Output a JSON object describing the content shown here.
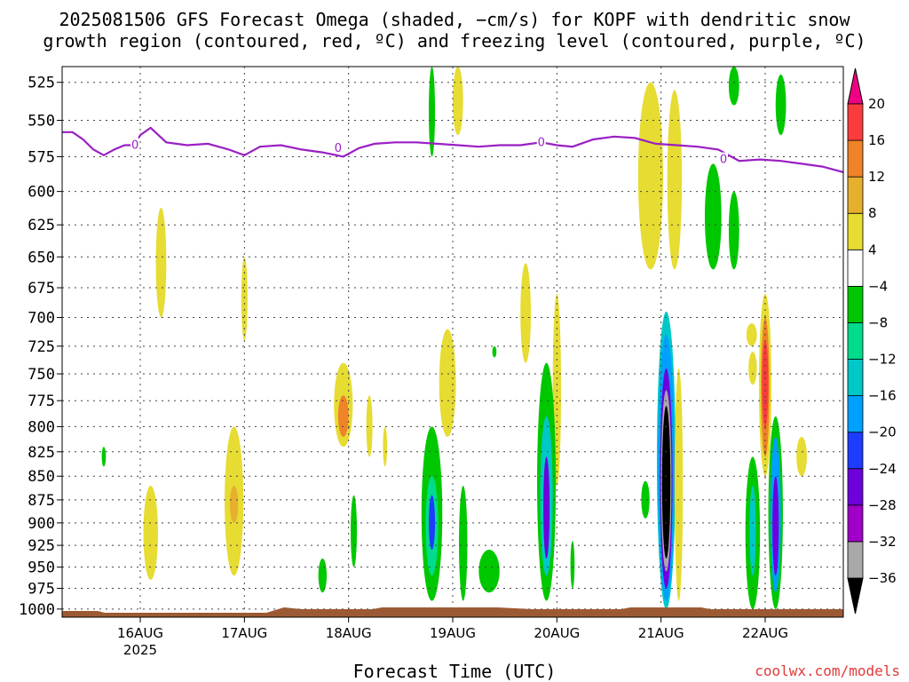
{
  "chart_data": {
    "type": "heatmap",
    "title_line1": "2025081506 GFS Forecast Omega (shaded, −cm/s) for KOPF with dendritic snow",
    "title_line2": "growth region (contoured, red, ºC) and freezing level (contoured, purple, ºC)",
    "xlabel": "Forecast Time (UTC)",
    "credit": "coolwx.com/models",
    "x_axis": {
      "unit": "days since 2025-08-15 06 UTC",
      "range": [
        0,
        7.5
      ],
      "ticks": [
        {
          "x": 0.75,
          "label": "16AUG",
          "sublabel": "2025"
        },
        {
          "x": 1.75,
          "label": "17AUG",
          "sublabel": ""
        },
        {
          "x": 2.75,
          "label": "18AUG",
          "sublabel": ""
        },
        {
          "x": 3.75,
          "label": "19AUG",
          "sublabel": ""
        },
        {
          "x": 4.75,
          "label": "20AUG",
          "sublabel": ""
        },
        {
          "x": 5.75,
          "label": "21AUG",
          "sublabel": ""
        },
        {
          "x": 6.75,
          "label": "22AUG",
          "sublabel": ""
        }
      ]
    },
    "y_axis": {
      "unit": "hPa",
      "reversed": true,
      "range": [
        1010,
        515
      ],
      "ticks": [
        525,
        550,
        575,
        600,
        625,
        650,
        675,
        700,
        725,
        750,
        775,
        800,
        825,
        850,
        875,
        900,
        925,
        950,
        975,
        1000
      ]
    },
    "grid": true,
    "colorbar": {
      "bins": [
        {
          "color": "#000000"
        },
        {
          "color": "#a8a8a8"
        },
        {
          "color": "#a000c8"
        },
        {
          "color": "#6e00dc"
        },
        {
          "color": "#1e3cff"
        },
        {
          "color": "#00a0ff"
        },
        {
          "color": "#00c8c8"
        },
        {
          "color": "#00dc8c"
        },
        {
          "color": "#00c800"
        },
        {
          "color": "#ffffff"
        },
        {
          "color": "#e6dc32"
        },
        {
          "color": "#e6b02e"
        },
        {
          "color": "#f08228"
        },
        {
          "color": "#fa3c3c"
        },
        {
          "color": "#f00082"
        }
      ],
      "labels": [
        "20",
        "16",
        "12",
        "8",
        "4",
        "−4",
        "−8",
        "−12",
        "−16",
        "−20",
        "−24",
        "−28",
        "−32",
        "−36"
      ]
    },
    "freezing_level": {
      "color": "#9a1fc4",
      "contour_label": "0",
      "points": [
        [
          0.0,
          558
        ],
        [
          0.1,
          558
        ],
        [
          0.2,
          563
        ],
        [
          0.3,
          570
        ],
        [
          0.4,
          574
        ],
        [
          0.5,
          570
        ],
        [
          0.6,
          567
        ],
        [
          0.7,
          567
        ],
        [
          0.75,
          560
        ],
        [
          0.85,
          555
        ],
        [
          1.0,
          565
        ],
        [
          1.2,
          567
        ],
        [
          1.4,
          566
        ],
        [
          1.6,
          570
        ],
        [
          1.75,
          574
        ],
        [
          1.9,
          568
        ],
        [
          2.1,
          567
        ],
        [
          2.3,
          570
        ],
        [
          2.5,
          572
        ],
        [
          2.7,
          575
        ],
        [
          2.85,
          569
        ],
        [
          3.0,
          566
        ],
        [
          3.2,
          565
        ],
        [
          3.4,
          565
        ],
        [
          3.6,
          566
        ],
        [
          3.8,
          567
        ],
        [
          4.0,
          568
        ],
        [
          4.2,
          567
        ],
        [
          4.4,
          567
        ],
        [
          4.6,
          565
        ],
        [
          4.75,
          567
        ],
        [
          4.9,
          568
        ],
        [
          5.1,
          563
        ],
        [
          5.3,
          561
        ],
        [
          5.5,
          562
        ],
        [
          5.7,
          566
        ],
        [
          5.9,
          567
        ],
        [
          6.1,
          568
        ],
        [
          6.3,
          570
        ],
        [
          6.5,
          578
        ],
        [
          6.7,
          577
        ],
        [
          6.9,
          578
        ],
        [
          7.1,
          580
        ],
        [
          7.3,
          582
        ],
        [
          7.5,
          586
        ]
      ],
      "label_points": [
        [
          0.7,
          567
        ],
        [
          2.65,
          569
        ],
        [
          4.6,
          565
        ],
        [
          6.35,
          577
        ]
      ]
    },
    "omega_blobs": [
      {
        "x": 0.95,
        "p1": 612,
        "p2": 700,
        "w": 0.05,
        "c": 10
      },
      {
        "x": 1.75,
        "p1": 650,
        "p2": 720,
        "w": 0.03,
        "c": 10
      },
      {
        "x": 3.8,
        "p1": 515,
        "p2": 560,
        "w": 0.05,
        "c": 10
      },
      {
        "x": 3.55,
        "p1": 515,
        "p2": 575,
        "w": 0.03,
        "c": 8
      },
      {
        "x": 4.45,
        "p1": 655,
        "p2": 740,
        "w": 0.05,
        "c": 10
      },
      {
        "x": 4.75,
        "p1": 680,
        "p2": 860,
        "w": 0.04,
        "c": 10
      },
      {
        "x": 5.65,
        "p1": 525,
        "p2": 660,
        "w": 0.12,
        "c": 10
      },
      {
        "x": 5.88,
        "p1": 530,
        "p2": 660,
        "w": 0.07,
        "c": 10
      },
      {
        "x": 6.25,
        "p1": 580,
        "p2": 660,
        "w": 0.08,
        "c": 8
      },
      {
        "x": 6.45,
        "p1": 600,
        "p2": 660,
        "w": 0.05,
        "c": 8
      },
      {
        "x": 6.45,
        "p1": 515,
        "p2": 540,
        "w": 0.05,
        "c": 8
      },
      {
        "x": 6.62,
        "p1": 705,
        "p2": 725,
        "w": 0.05,
        "c": 10
      },
      {
        "x": 0.85,
        "p1": 860,
        "p2": 965,
        "w": 0.07,
        "c": 10
      },
      {
        "x": 1.65,
        "p1": 800,
        "p2": 960,
        "w": 0.09,
        "c": 10
      },
      {
        "x": 1.65,
        "p1": 860,
        "p2": 900,
        "w": 0.04,
        "c": 11
      },
      {
        "x": 2.7,
        "p1": 740,
        "p2": 820,
        "w": 0.09,
        "c": 10
      },
      {
        "x": 2.7,
        "p1": 770,
        "p2": 810,
        "w": 0.05,
        "c": 12
      },
      {
        "x": 3.7,
        "p1": 710,
        "p2": 810,
        "w": 0.08,
        "c": 10
      },
      {
        "x": 3.55,
        "p1": 800,
        "p2": 990,
        "w": 0.1,
        "c": 8
      },
      {
        "x": 3.55,
        "p1": 850,
        "p2": 960,
        "w": 0.06,
        "c": 7
      },
      {
        "x": 3.55,
        "p1": 870,
        "p2": 930,
        "w": 0.03,
        "c": 4
      },
      {
        "x": 3.85,
        "p1": 860,
        "p2": 990,
        "w": 0.04,
        "c": 8
      },
      {
        "x": 4.1,
        "p1": 930,
        "p2": 980,
        "w": 0.1,
        "c": 8
      },
      {
        "x": 4.65,
        "p1": 740,
        "p2": 990,
        "w": 0.09,
        "c": 8
      },
      {
        "x": 4.65,
        "p1": 790,
        "p2": 960,
        "w": 0.06,
        "c": 6
      },
      {
        "x": 4.65,
        "p1": 830,
        "p2": 940,
        "w": 0.03,
        "c": 3
      },
      {
        "x": 4.9,
        "p1": 920,
        "p2": 975,
        "w": 0.02,
        "c": 8
      },
      {
        "x": 5.8,
        "p1": 695,
        "p2": 1000,
        "w": 0.09,
        "c": 6
      },
      {
        "x": 5.8,
        "p1": 715,
        "p2": 990,
        "w": 0.08,
        "c": 5
      },
      {
        "x": 5.8,
        "p1": 745,
        "p2": 975,
        "w": 0.06,
        "c": 3
      },
      {
        "x": 5.8,
        "p1": 765,
        "p2": 955,
        "w": 0.05,
        "c": 1
      },
      {
        "x": 5.8,
        "p1": 780,
        "p2": 940,
        "w": 0.04,
        "c": 0
      },
      {
        "x": 5.92,
        "p1": 745,
        "p2": 990,
        "w": 0.04,
        "c": 10
      },
      {
        "x": 5.6,
        "p1": 855,
        "p2": 895,
        "w": 0.04,
        "c": 8
      },
      {
        "x": 6.75,
        "p1": 680,
        "p2": 850,
        "w": 0.06,
        "c": 10
      },
      {
        "x": 6.75,
        "p1": 700,
        "p2": 830,
        "w": 0.04,
        "c": 12
      },
      {
        "x": 6.75,
        "p1": 720,
        "p2": 800,
        "w": 0.03,
        "c": 13
      },
      {
        "x": 6.63,
        "p1": 730,
        "p2": 760,
        "w": 0.04,
        "c": 10
      },
      {
        "x": 6.63,
        "p1": 830,
        "p2": 1000,
        "w": 0.07,
        "c": 8
      },
      {
        "x": 6.63,
        "p1": 860,
        "p2": 960,
        "w": 0.03,
        "c": 6
      },
      {
        "x": 6.85,
        "p1": 790,
        "p2": 1000,
        "w": 0.07,
        "c": 8
      },
      {
        "x": 6.85,
        "p1": 810,
        "p2": 980,
        "w": 0.05,
        "c": 5
      },
      {
        "x": 6.85,
        "p1": 850,
        "p2": 960,
        "w": 0.03,
        "c": 3
      },
      {
        "x": 7.1,
        "p1": 810,
        "p2": 850,
        "w": 0.05,
        "c": 10
      },
      {
        "x": 2.95,
        "p1": 770,
        "p2": 830,
        "w": 0.03,
        "c": 10
      },
      {
        "x": 3.1,
        "p1": 800,
        "p2": 840,
        "w": 0.02,
        "c": 10
      },
      {
        "x": 2.5,
        "p1": 940,
        "p2": 980,
        "w": 0.04,
        "c": 8
      },
      {
        "x": 2.8,
        "p1": 870,
        "p2": 950,
        "w": 0.03,
        "c": 8
      },
      {
        "x": 4.15,
        "p1": 725,
        "p2": 735,
        "w": 0.02,
        "c": 8
      },
      {
        "x": 0.4,
        "p1": 820,
        "p2": 840,
        "w": 0.02,
        "c": 8
      },
      {
        "x": 6.9,
        "p1": 520,
        "p2": 560,
        "w": 0.05,
        "c": 8
      }
    ]
  }
}
